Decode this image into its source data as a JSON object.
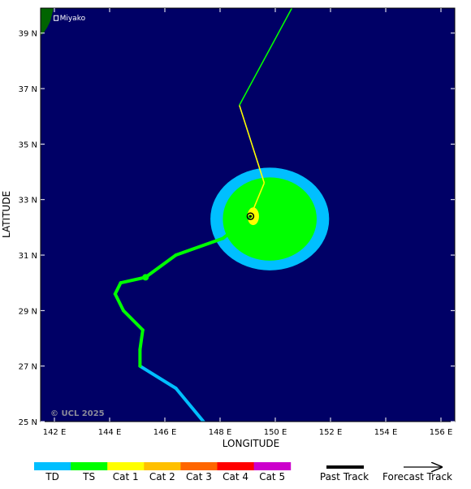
{
  "map": {
    "x_axis_label": "LONGITUDE",
    "y_axis_label": "LATITUDE",
    "lon_range": [
      141.5,
      156.5
    ],
    "lat_range": [
      25.0,
      39.9
    ],
    "lon_ticks": [
      "142 E",
      "144 E",
      "146 E",
      "148 E",
      "150 E",
      "152 E",
      "154 E",
      "156 E"
    ],
    "lat_ticks": [
      "25 N",
      "27 N",
      "29 N",
      "31 N",
      "33 N",
      "35 N",
      "37 N",
      "39 N"
    ],
    "lon_tick_values": [
      142,
      144,
      146,
      148,
      150,
      152,
      154,
      156
    ],
    "lat_tick_values": [
      25,
      27,
      29,
      31,
      33,
      35,
      37,
      39
    ],
    "ocean_color": "#000066",
    "land_color": "#006400",
    "city": {
      "name": "Miyako",
      "lon": 141.9,
      "lat": 39.6
    },
    "copyright": "© UCL 2025"
  },
  "storm": {
    "center": {
      "lon": 149.1,
      "lat": 32.4
    },
    "wind_radii": {
      "td": {
        "lon_center": 149.8,
        "lat_center": 32.3,
        "rx_deg": 4.3,
        "ry_deg": 1.85,
        "color": "#00bfff"
      },
      "ts": {
        "lon_center": 149.8,
        "lat_center": 32.3,
        "rx_deg": 3.4,
        "ry_deg": 1.5,
        "color": "#00ff00"
      },
      "cat1": {
        "lon_center": 149.2,
        "lat_center": 32.4,
        "rx_deg": 0.42,
        "ry_deg": 0.32,
        "color": "#ffff00"
      }
    },
    "past_track": [
      {
        "lon": 147.4,
        "lat": 25.0,
        "category": "TD"
      },
      {
        "lon": 146.4,
        "lat": 26.2,
        "category": "TD"
      },
      {
        "lon": 145.1,
        "lat": 27.0,
        "category": "TS"
      },
      {
        "lon": 145.1,
        "lat": 27.6,
        "category": "TS"
      },
      {
        "lon": 145.2,
        "lat": 28.3,
        "category": "TS"
      },
      {
        "lon": 144.5,
        "lat": 29.0,
        "category": "TS"
      },
      {
        "lon": 144.2,
        "lat": 29.6,
        "category": "TS"
      },
      {
        "lon": 144.4,
        "lat": 30.0,
        "category": "TS"
      },
      {
        "lon": 145.3,
        "lat": 30.2,
        "category": "TS"
      },
      {
        "lon": 146.4,
        "lat": 31.0,
        "category": "TS"
      },
      {
        "lon": 148.1,
        "lat": 31.6,
        "category": "TS"
      },
      {
        "lon": 149.1,
        "lat": 32.4,
        "category": "TS"
      }
    ],
    "forecast_track": [
      {
        "lon": 149.1,
        "lat": 32.4
      },
      {
        "lon": 149.6,
        "lat": 33.6
      },
      {
        "lon": 148.7,
        "lat": 36.4
      },
      {
        "lon": 150.6,
        "lat": 39.9
      }
    ],
    "forecast_track_colors": [
      "#ffff00",
      "#ffff00",
      "#00ff00"
    ]
  },
  "legend": {
    "categories": [
      {
        "label": "TD",
        "color": "#00bfff"
      },
      {
        "label": "TS",
        "color": "#00ff00"
      },
      {
        "label": "Cat 1",
        "color": "#ffff00"
      },
      {
        "label": "Cat 2",
        "color": "#ffc000"
      },
      {
        "label": "Cat 3",
        "color": "#ff6600"
      },
      {
        "label": "Cat 4",
        "color": "#ff0000"
      },
      {
        "label": "Cat 5",
        "color": "#cc00cc"
      }
    ],
    "past_track_label": "Past Track",
    "forecast_track_label": "Forecast Track"
  }
}
